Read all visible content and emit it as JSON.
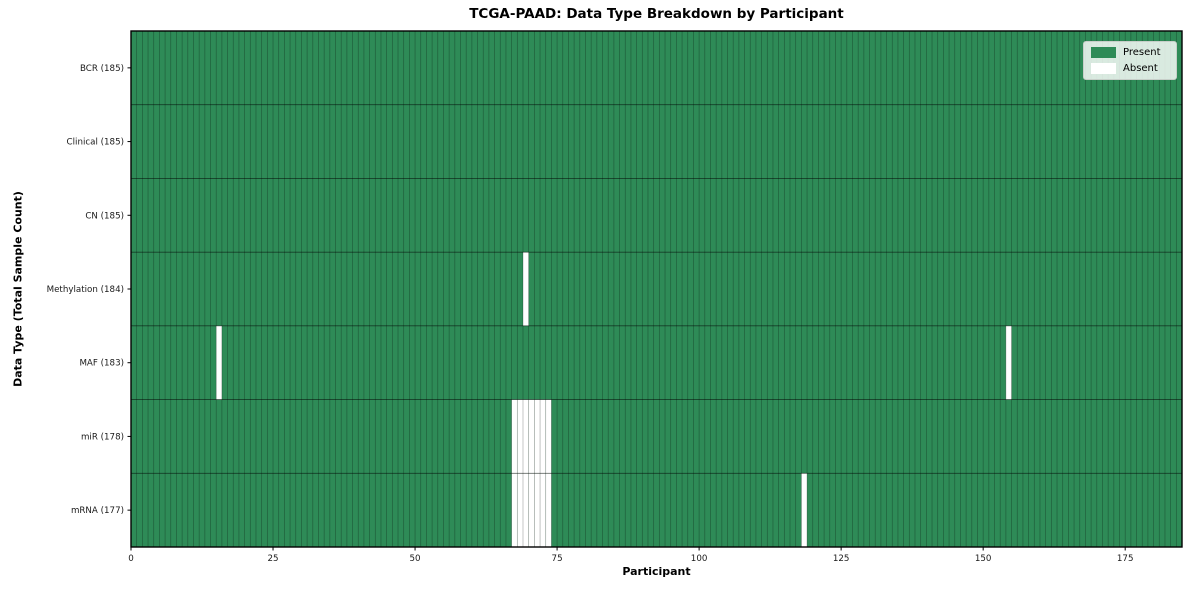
{
  "figure": {
    "title": "TCGA-PAAD: Data Type Breakdown by Participant",
    "xlabel": "Participant",
    "ylabel": "Data Type (Total Sample Count)"
  },
  "legend": {
    "entries": [
      {
        "label": "Present",
        "color": "#2E8B57"
      },
      {
        "label": "Absent",
        "color": "#FFFFFF"
      }
    ]
  },
  "chart_data": {
    "type": "heatmap",
    "subtype": "presence-absence-matrix",
    "title": "TCGA-PAAD: Data Type Breakdown by Participant",
    "xlabel": "Participant",
    "ylabel": "Data Type (Total Sample Count)",
    "n_participants": 185,
    "xlim": [
      0,
      185
    ],
    "x_ticks": [
      0,
      25,
      50,
      75,
      100,
      125,
      150,
      175
    ],
    "colors": {
      "present": "#2E8B57",
      "absent": "#FFFFFF",
      "column_separator": "rgba(0,0,0,0.32)",
      "row_separator": "rgba(0,0,0,0.55)",
      "plot_border": "#000000"
    },
    "legend": [
      "Present",
      "Absent"
    ],
    "legend_position": "upper right",
    "grid": "vertical separator per participant column",
    "rows": [
      {
        "label": "BCR (185)",
        "name": "BCR",
        "present_count": 185,
        "absent_participants": []
      },
      {
        "label": "Clinical (185)",
        "name": "Clinical",
        "present_count": 185,
        "absent_participants": []
      },
      {
        "label": "CN (185)",
        "name": "CN",
        "present_count": 185,
        "absent_participants": []
      },
      {
        "label": "Methylation (184)",
        "name": "Methylation",
        "present_count": 184,
        "absent_participants": [
          69
        ]
      },
      {
        "label": "MAF (183)",
        "name": "MAF",
        "present_count": 183,
        "absent_participants": [
          15,
          154
        ]
      },
      {
        "label": "miR (178)",
        "name": "miR",
        "present_count": 178,
        "absent_participants": [
          67,
          68,
          69,
          70,
          71,
          72,
          73
        ]
      },
      {
        "label": "mRNA (177)",
        "name": "mRNA",
        "present_count": 177,
        "absent_participants": [
          67,
          68,
          69,
          70,
          71,
          72,
          73,
          118
        ]
      }
    ]
  }
}
